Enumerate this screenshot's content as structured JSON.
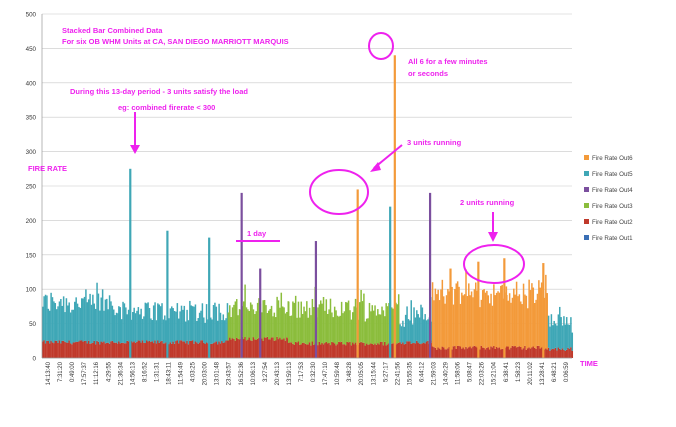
{
  "chart_data": {
    "type": "bar",
    "stacked": true,
    "title_lines": [
      "Stacked Bar Combined Data",
      "For six OB WHM Units at CA, SAN DIEGO MARRIOTT MARQUIS"
    ],
    "ylabel": "FIRE RATE",
    "xlabel": "TIME",
    "ylim": [
      0,
      500
    ],
    "yticks": [
      0,
      50,
      100,
      150,
      200,
      250,
      300,
      350,
      400,
      450,
      500
    ],
    "grid": true,
    "legend_position": "right",
    "x_tick_labels": [
      "14:13:40",
      "7:31:20",
      "0:49:00",
      "17:57:37",
      "11:12:16",
      "4:29:55",
      "21:36:34",
      "14:56:13",
      "8:16:52",
      "1:31:31",
      "18:43:11",
      "11:54:49",
      "4:03:25",
      "20:03:00",
      "13:01:48",
      "23:43:57",
      "16:52:36",
      "10:06:13",
      "3:27:54",
      "20:43:13",
      "13:59:13",
      "7:17:53",
      "0:32:30",
      "17:47:10",
      "10:59:48",
      "3:48:28",
      "20:05:05",
      "13:15:44",
      "5:27:17",
      "22:41:56",
      "15:55:35",
      "6:44:12",
      "21:59:03",
      "14:40:29",
      "11:58:06",
      "5:08:47",
      "22:03:26",
      "15:21:04",
      "6:38:41",
      "1:58:23",
      "20:11:02",
      "13:28:41",
      "6:48:21",
      "0:06:59"
    ],
    "legend": [
      {
        "name": "Fire Rate Out6",
        "color": "#f39a3a"
      },
      {
        "name": "Fire Rate Out5",
        "color": "#3fa7b6"
      },
      {
        "name": "Fire Rate Out4",
        "color": "#7b4f9e"
      },
      {
        "name": "Fire Rate Out3",
        "color": "#8bbd3c"
      },
      {
        "name": "Fire Rate Out2",
        "color": "#c0392b"
      },
      {
        "name": "Fire Rate Out1",
        "color": "#3a6fb5"
      }
    ],
    "segments": [
      {
        "start": 0,
        "end": 82,
        "base": 20,
        "top_color": "#3fa7b6",
        "top_base": 40,
        "top_amp": 35
      },
      {
        "start": 82,
        "end": 200,
        "base": 20,
        "top_color": "#3fa7b6",
        "top_base": 30,
        "top_amp": 30
      },
      {
        "start": 200,
        "end": 265,
        "base": 25,
        "top_color": "#8bbd3c",
        "top_base": 30,
        "top_amp": 30
      },
      {
        "start": 265,
        "end": 385,
        "base": 18,
        "top_color": "#8bbd3c",
        "top_base": 35,
        "top_amp": 30
      },
      {
        "start": 385,
        "end": 420,
        "base": 20,
        "top_color": "#3fa7b6",
        "top_base": 25,
        "top_amp": 30
      },
      {
        "start": 420,
        "end": 500,
        "base": 12,
        "top_color": "#f39a3a",
        "top_base": 60,
        "top_amp": 35
      },
      {
        "start": 500,
        "end": 545,
        "base": 12,
        "top_color": "#f39a3a",
        "top_base": 55,
        "top_amp": 45
      },
      {
        "start": 545,
        "end": 571,
        "base": 10,
        "top_color": "#3fa7b6",
        "top_base": 25,
        "top_amp": 25
      }
    ],
    "spikes": [
      {
        "x": 95,
        "value": 275,
        "color": "#3fa7b6"
      },
      {
        "x": 135,
        "value": 185,
        "color": "#3fa7b6"
      },
      {
        "x": 180,
        "value": 175,
        "color": "#3fa7b6"
      },
      {
        "x": 215,
        "value": 240,
        "color": "#7b4f9e"
      },
      {
        "x": 235,
        "value": 130,
        "color": "#7b4f9e"
      },
      {
        "x": 295,
        "value": 170,
        "color": "#7b4f9e"
      },
      {
        "x": 340,
        "value": 245,
        "color": "#f39a3a"
      },
      {
        "x": 375,
        "value": 220,
        "color": "#3fa7b6"
      },
      {
        "x": 380,
        "value": 440,
        "color": "#f39a3a"
      },
      {
        "x": 418,
        "value": 240,
        "color": "#7b4f9e"
      },
      {
        "x": 440,
        "value": 130,
        "color": "#f39a3a"
      },
      {
        "x": 470,
        "value": 140,
        "color": "#f39a3a"
      },
      {
        "x": 498,
        "value": 145,
        "color": "#f39a3a"
      },
      {
        "x": 540,
        "value": 138,
        "color": "#f39a3a"
      }
    ]
  },
  "annotations": [
    {
      "id": "period",
      "text": "During this 13-day period - 3 units satisfy the load"
    },
    {
      "id": "eg",
      "text": "eg: combined firerate < 300"
    },
    {
      "id": "all6",
      "text": "All 6 for a few minutes"
    },
    {
      "id": "all6b",
      "text": "or seconds"
    },
    {
      "id": "three",
      "text": "3 units running"
    },
    {
      "id": "two",
      "text": "2 units running"
    },
    {
      "id": "oneday",
      "text": "1 day"
    }
  ],
  "colors": {
    "annotation": "#ee22ee",
    "axis_text": "#333333",
    "grid": "#c8c8c8"
  }
}
